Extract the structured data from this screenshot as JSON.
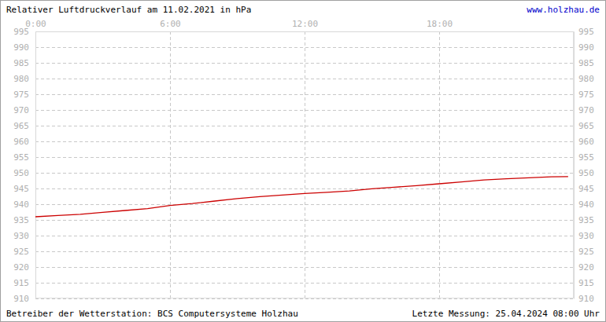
{
  "chart_data": {
    "type": "line",
    "title": "Relativer Luftdruckverlauf am 11.02.2021 in hPa",
    "source": "www.holzhau.de",
    "footer_left": "Betreiber der Wetterstation: BCS Computersysteme Holzhau",
    "footer_right": "Letzte Messung: 25.04.2024 08:00 Uhr",
    "x": [
      0,
      1,
      2,
      3,
      4,
      5,
      6,
      7,
      8,
      9,
      10,
      11,
      12,
      13,
      14,
      15,
      16,
      17,
      18,
      19,
      20,
      21,
      22,
      23,
      23.75
    ],
    "values": [
      936.0,
      936.4,
      936.8,
      937.4,
      938.0,
      938.6,
      939.6,
      940.2,
      941.0,
      941.8,
      942.4,
      942.9,
      943.4,
      943.8,
      944.2,
      944.9,
      945.4,
      945.9,
      946.5,
      947.1,
      947.7,
      948.1,
      948.4,
      948.7,
      948.8
    ],
    "color": "#cc0000",
    "xlim": [
      0,
      24
    ],
    "xticks": [
      {
        "value": 0,
        "label": "0:00"
      },
      {
        "value": 6,
        "label": "6:00"
      },
      {
        "value": 12,
        "label": "12:00"
      },
      {
        "value": 18,
        "label": "18:00"
      }
    ],
    "ylim": [
      910,
      995
    ],
    "yticks": [
      910,
      915,
      920,
      925,
      930,
      935,
      940,
      945,
      950,
      955,
      960,
      965,
      970,
      975,
      980,
      985,
      990,
      995
    ],
    "grid": true
  }
}
